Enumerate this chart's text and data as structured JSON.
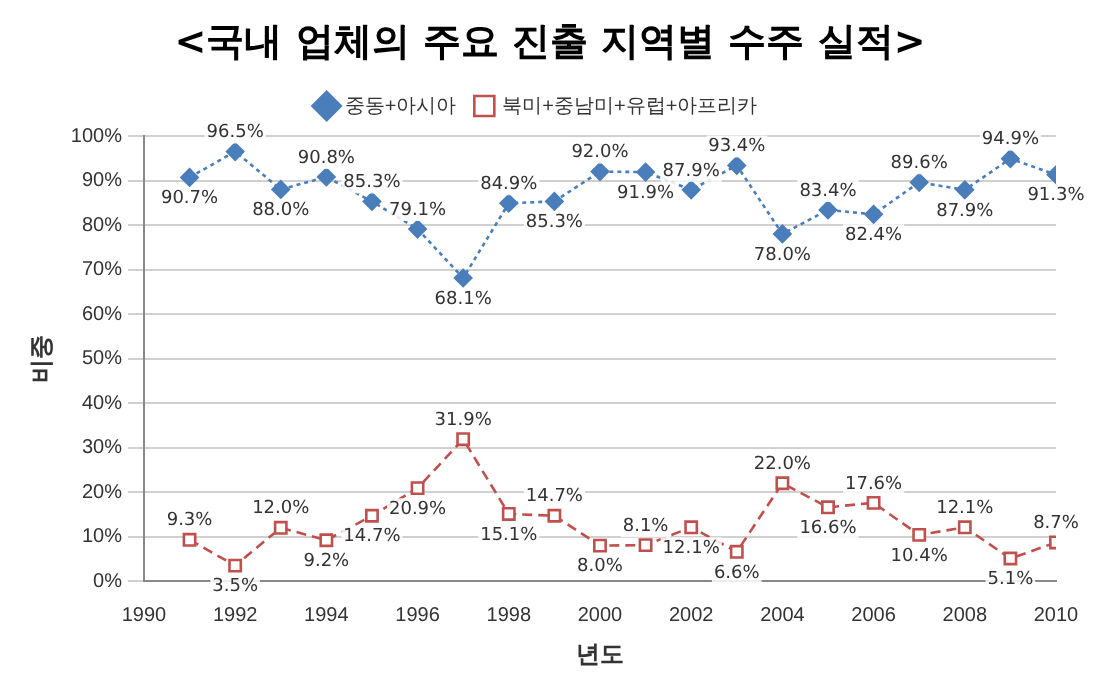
{
  "chart_data": {
    "type": "line",
    "title": "<국내 업체의 주요 진출 지역별 수주 실적>",
    "xlabel": "년도",
    "ylabel": "비중",
    "x": [
      1991,
      1992,
      1993,
      1994,
      1995,
      1996,
      1997,
      1998,
      1999,
      2000,
      2001,
      2002,
      2003,
      2004,
      2005,
      2006,
      2007,
      2008,
      2009,
      2010
    ],
    "series": [
      {
        "name": "중동+아시아",
        "color": "#4a7ebb",
        "marker": "diamond",
        "line_style": "dotted",
        "values": [
          90.7,
          96.5,
          88.0,
          90.8,
          85.3,
          79.1,
          68.1,
          84.9,
          85.3,
          92.0,
          91.9,
          87.9,
          93.4,
          78.0,
          83.4,
          82.4,
          89.6,
          87.9,
          94.9,
          91.3
        ],
        "value_labels": [
          "90.7%",
          "96.5%",
          "88.0%",
          "90.8%",
          "85.3%",
          "79.1%",
          "68.1%",
          "84.9%",
          "85.3%",
          "92.0%",
          "91.9%",
          "87.9%",
          "93.4%",
          "78.0%",
          "83.4%",
          "82.4%",
          "89.6%",
          "87.9%",
          "94.9%",
          "91.3%"
        ]
      },
      {
        "name": "북미+중남미+유럽+아프리카",
        "color": "#c0504d",
        "marker": "square",
        "line_style": "dashed",
        "values": [
          9.3,
          3.5,
          12.0,
          9.2,
          14.7,
          20.9,
          31.9,
          15.1,
          14.7,
          8.0,
          8.1,
          12.1,
          6.6,
          22.0,
          16.6,
          17.6,
          10.4,
          12.1,
          5.1,
          8.7
        ],
        "value_labels": [
          "9.3%",
          "3.5%",
          "12.0%",
          "9.2%",
          "14.7%",
          "20.9%",
          "31.9%",
          "15.1%",
          "14.7%",
          "8.0%",
          "8.1%",
          "12.1%",
          "6.6%",
          "22.0%",
          "16.6%",
          "17.6%",
          "10.4%",
          "12.1%",
          "5.1%",
          "8.7%"
        ]
      }
    ],
    "xlim": [
      1990,
      2010
    ],
    "xticks": [
      1990,
      1992,
      1994,
      1996,
      1998,
      2000,
      2002,
      2004,
      2006,
      2008,
      2010
    ],
    "ylim": [
      0,
      100
    ],
    "yticks": [
      {
        "value": 0,
        "label": "0%"
      },
      {
        "value": 10,
        "label": "10%"
      },
      {
        "value": 20,
        "label": "20%"
      },
      {
        "value": 30,
        "label": "30%"
      },
      {
        "value": 40,
        "label": "40%"
      },
      {
        "value": 50,
        "label": "50%"
      },
      {
        "value": 60,
        "label": "60%"
      },
      {
        "value": 70,
        "label": "70%"
      },
      {
        "value": 80,
        "label": "80%"
      },
      {
        "value": 90,
        "label": "90%"
      },
      {
        "value": 100,
        "label": "100%"
      }
    ],
    "grid": "y",
    "legend": "top"
  }
}
